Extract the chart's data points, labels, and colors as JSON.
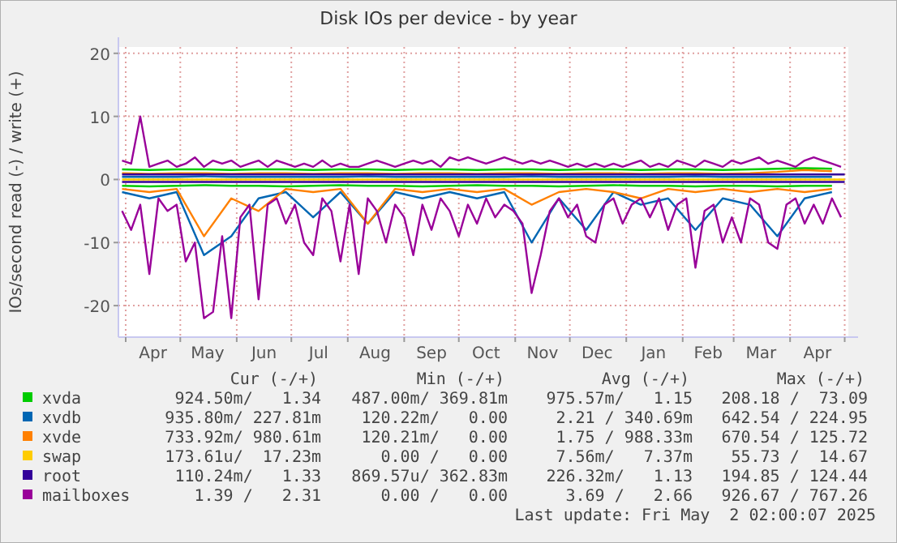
{
  "chart_data": {
    "type": "line",
    "title": "Disk IOs per device - by year",
    "ylabel": "IOs/second read (-) / write (+)",
    "x": [
      "2024-03-30",
      "2024-04-04",
      "2024-04-09",
      "2024-04-14",
      "2024-04-19",
      "2024-04-24",
      "2024-04-29",
      "2024-05-04",
      "2024-05-09",
      "2024-05-14",
      "2024-05-19",
      "2024-05-24",
      "2024-05-29",
      "2024-06-03",
      "2024-06-08",
      "2024-06-13",
      "2024-06-18",
      "2024-06-23",
      "2024-06-28",
      "2024-07-03",
      "2024-07-08",
      "2024-07-13",
      "2024-07-18",
      "2024-07-23",
      "2024-07-28",
      "2024-08-02",
      "2024-08-07",
      "2024-08-12",
      "2024-08-17",
      "2024-08-22",
      "2024-08-27",
      "2024-09-01",
      "2024-09-06",
      "2024-09-11",
      "2024-09-16",
      "2024-09-21",
      "2024-09-26",
      "2024-10-01",
      "2024-10-06",
      "2024-10-11",
      "2024-10-16",
      "2024-10-21",
      "2024-10-26",
      "2024-10-31",
      "2024-11-05",
      "2024-11-10",
      "2024-11-15",
      "2024-11-20",
      "2024-11-25",
      "2024-11-30",
      "2024-12-05",
      "2024-12-10",
      "2024-12-15",
      "2024-12-20",
      "2024-12-25",
      "2024-12-30",
      "2025-01-04",
      "2025-01-09",
      "2025-01-14",
      "2025-01-19",
      "2025-01-24",
      "2025-01-29",
      "2025-02-03",
      "2025-02-08",
      "2025-02-13",
      "2025-02-18",
      "2025-02-23",
      "2025-02-28",
      "2025-03-05",
      "2025-03-10",
      "2025-03-15",
      "2025-03-20",
      "2025-03-25",
      "2025-03-30",
      "2025-04-04",
      "2025-04-09",
      "2025-04-14",
      "2025-04-19",
      "2025-04-24",
      "2025-04-29"
    ],
    "series": [
      {
        "name": "xvda",
        "color": "#00cc00",
        "x": [
          "2024-03-30",
          "2024-04-14",
          "2024-04-29",
          "2024-05-14",
          "2024-05-29",
          "2024-06-13",
          "2024-06-28",
          "2024-07-13",
          "2024-07-28",
          "2024-08-12",
          "2024-08-27",
          "2024-09-11",
          "2024-09-26",
          "2024-10-11",
          "2024-10-26",
          "2024-11-10",
          "2024-11-25",
          "2024-12-10",
          "2024-12-25",
          "2025-01-09",
          "2025-01-24",
          "2025-02-08",
          "2025-02-23",
          "2025-03-10",
          "2025-03-25",
          "2025-04-09",
          "2025-04-24"
        ],
        "values": [
          1.6,
          1.5,
          1.6,
          1.6,
          1.5,
          1.6,
          1.6,
          1.5,
          1.6,
          1.6,
          1.5,
          1.6,
          1.6,
          1.5,
          1.6,
          1.6,
          1.5,
          1.6,
          1.6,
          1.5,
          1.6,
          1.6,
          1.5,
          1.6,
          1.7,
          1.8,
          1.7
        ]
      },
      {
        "color": "#00cc00",
        "x": [
          "2024-03-30",
          "2024-04-14",
          "2024-04-29",
          "2024-05-14",
          "2024-05-29",
          "2024-06-13",
          "2024-06-28",
          "2024-07-13",
          "2024-07-28",
          "2024-08-12",
          "2024-08-27",
          "2024-09-11",
          "2024-09-26",
          "2024-10-11",
          "2024-10-26",
          "2024-11-10",
          "2024-11-25",
          "2024-12-10",
          "2024-12-25",
          "2025-01-09",
          "2025-01-24",
          "2025-02-08",
          "2025-02-23",
          "2025-03-10",
          "2025-03-25",
          "2025-04-09",
          "2025-04-24"
        ],
        "values": [
          -1,
          -1.1,
          -1,
          -0.9,
          -1,
          -1,
          -1.1,
          -1,
          -0.9,
          -1,
          -1,
          -1.1,
          -1,
          -0.9,
          -1,
          -1,
          -1.1,
          -1,
          -0.9,
          -1,
          -1,
          -1.1,
          -1,
          -1,
          -1.1,
          -1,
          -1
        ]
      },
      {
        "name": "xvdb",
        "color": "#0066b3",
        "x": [
          "2024-03-30",
          "2024-04-14",
          "2024-04-29",
          "2024-05-14",
          "2024-05-29",
          "2024-06-13",
          "2024-06-28",
          "2024-07-13",
          "2024-07-28",
          "2024-08-12",
          "2024-08-27",
          "2024-09-11",
          "2024-09-26",
          "2024-10-11",
          "2024-10-26",
          "2024-11-10",
          "2024-11-25",
          "2024-12-10",
          "2024-12-25",
          "2025-01-09",
          "2025-01-24",
          "2025-02-08",
          "2025-02-23",
          "2025-03-10",
          "2025-03-25",
          "2025-04-09",
          "2025-04-24"
        ],
        "values": [
          0.4,
          0.4,
          0.4,
          0.5,
          0.4,
          0.4,
          0.4,
          0.4,
          0.4,
          0.5,
          0.4,
          0.4,
          0.4,
          0.4,
          0.4,
          0.5,
          0.4,
          0.4,
          0.4,
          0.4,
          0.4,
          0.5,
          0.4,
          0.4,
          0.4,
          0.4,
          0.4
        ]
      },
      {
        "color": "#0066b3",
        "x": [
          "2024-03-30",
          "2024-04-14",
          "2024-04-29",
          "2024-05-14",
          "2024-05-29",
          "2024-06-13",
          "2024-06-28",
          "2024-07-13",
          "2024-07-28",
          "2024-08-12",
          "2024-08-27",
          "2024-09-11",
          "2024-09-26",
          "2024-10-11",
          "2024-10-26",
          "2024-11-10",
          "2024-11-25",
          "2024-12-10",
          "2024-12-25",
          "2025-01-09",
          "2025-01-24",
          "2025-02-08",
          "2025-02-23",
          "2025-03-10",
          "2025-03-25",
          "2025-04-09",
          "2025-04-24"
        ],
        "values": [
          -2,
          -3,
          -2,
          -12,
          -9,
          -3,
          -2,
          -6,
          -2,
          -7,
          -2,
          -3,
          -2,
          -3,
          -2,
          -10,
          -3,
          -8,
          -2,
          -4,
          -3,
          -8,
          -3,
          -4,
          -9,
          -3,
          -2
        ]
      },
      {
        "name": "xvde",
        "color": "#ff8000",
        "x": [
          "2024-03-30",
          "2024-04-14",
          "2024-04-29",
          "2024-05-14",
          "2024-05-29",
          "2024-06-13",
          "2024-06-28",
          "2024-07-13",
          "2024-07-28",
          "2024-08-12",
          "2024-08-27",
          "2024-09-11",
          "2024-09-26",
          "2024-10-11",
          "2024-10-26",
          "2024-11-10",
          "2024-11-25",
          "2024-12-10",
          "2024-12-25",
          "2025-01-09",
          "2025-01-24",
          "2025-02-08",
          "2025-02-23",
          "2025-03-10",
          "2025-03-25",
          "2025-04-09",
          "2025-04-24"
        ],
        "values": [
          1,
          0.9,
          1,
          1,
          0.9,
          1,
          1,
          0.9,
          1,
          1,
          0.9,
          1,
          1,
          0.9,
          1,
          1,
          0.9,
          1,
          1,
          0.9,
          1,
          1,
          0.9,
          1,
          1.2,
          1.5,
          1.3
        ]
      },
      {
        "color": "#ff8000",
        "x": [
          "2024-03-30",
          "2024-04-14",
          "2024-04-29",
          "2024-05-14",
          "2024-05-29",
          "2024-06-13",
          "2024-06-28",
          "2024-07-13",
          "2024-07-28",
          "2024-08-12",
          "2024-08-27",
          "2024-09-11",
          "2024-09-26",
          "2024-10-11",
          "2024-10-26",
          "2024-11-10",
          "2024-11-25",
          "2024-12-10",
          "2024-12-25",
          "2025-01-09",
          "2025-01-24",
          "2025-02-08",
          "2025-02-23",
          "2025-03-10",
          "2025-03-25",
          "2025-04-09",
          "2025-04-24"
        ],
        "values": [
          -1.5,
          -2,
          -1.5,
          -9,
          -3,
          -5,
          -1.5,
          -2,
          -1.5,
          -7,
          -1.5,
          -2,
          -1.5,
          -2,
          -1.5,
          -4,
          -2,
          -1.5,
          -2,
          -3,
          -1.5,
          -2,
          -1.5,
          -2,
          -1.5,
          -2,
          -1.5
        ]
      },
      {
        "name": "swap",
        "color": "#ffcc00",
        "x": [
          "2024-03-30",
          "2025-05-01"
        ],
        "values": [
          0,
          0
        ]
      },
      {
        "name": "root",
        "color": "#330099",
        "x": [
          "2024-03-30",
          "2025-05-01"
        ],
        "values": [
          0.8,
          0.8
        ]
      },
      {
        "color": "#330099",
        "x": [
          "2024-03-30",
          "2025-05-01"
        ],
        "values": [
          -0.4,
          -0.4
        ]
      },
      {
        "name": "mailboxes",
        "color": "#990099",
        "values": [
          3,
          2.5,
          10,
          2,
          2.5,
          3,
          2,
          2.5,
          3.5,
          2,
          3,
          2.5,
          3,
          2,
          2.5,
          3,
          2,
          3,
          2.5,
          2,
          2.5,
          2,
          3,
          2,
          2.5,
          2,
          2,
          2.5,
          3,
          2.5,
          2,
          2.5,
          3,
          2.5,
          3,
          2,
          3.5,
          3,
          3.5,
          3,
          2.5,
          3,
          3.5,
          3,
          2.5,
          3,
          2.5,
          3,
          2.5,
          2,
          2.5,
          2,
          2.5,
          2,
          2.5,
          2,
          2.5,
          3,
          2,
          2.5,
          2,
          3,
          2.5,
          2,
          3,
          2.5,
          2,
          3,
          2.5,
          3,
          3.5,
          2.5,
          3,
          2.5,
          2,
          3,
          3.5,
          3,
          2.5,
          2
        ]
      },
      {
        "color": "#990099",
        "values": [
          -5,
          -8,
          -4,
          -15,
          -3,
          -5,
          -4,
          -13,
          -10,
          -22,
          -21,
          -9,
          -22,
          -6,
          -4,
          -19,
          -4,
          -3,
          -7,
          -4,
          -10,
          -12,
          -3,
          -5,
          -13,
          -4,
          -15,
          -3,
          -5,
          -10,
          -4,
          -6,
          -12,
          -4,
          -8,
          -3,
          -5,
          -9,
          -4,
          -7,
          -3,
          -6,
          -4,
          -5,
          -7,
          -18,
          -12,
          -5,
          -3,
          -6,
          -4,
          -9,
          -10,
          -4,
          -3,
          -7,
          -4,
          -3,
          -6,
          -3,
          -8,
          -4,
          -3,
          -14,
          -5,
          -4,
          -10,
          -6,
          -10,
          -3,
          -4,
          -10,
          -11,
          -4,
          -3,
          -7,
          -4,
          -7,
          -3,
          -6
        ]
      }
    ],
    "xlim": [
      "2024-03-28",
      "2025-05-03"
    ],
    "xticks": [
      {
        "value": "2024-04-01",
        "label": null
      },
      {
        "value": "2024-04-16",
        "label": "Apr"
      },
      {
        "value": "2024-05-01",
        "label": null
      },
      {
        "value": "2024-05-16",
        "label": "May"
      },
      {
        "value": "2024-06-01",
        "label": null
      },
      {
        "value": "2024-06-16",
        "label": "Jun"
      },
      {
        "value": "2024-07-01",
        "label": null
      },
      {
        "value": "2024-07-16",
        "label": "Jul"
      },
      {
        "value": "2024-08-01",
        "label": null
      },
      {
        "value": "2024-08-16",
        "label": "Aug"
      },
      {
        "value": "2024-09-01",
        "label": null
      },
      {
        "value": "2024-09-16",
        "label": "Sep"
      },
      {
        "value": "2024-10-01",
        "label": null
      },
      {
        "value": "2024-10-16",
        "label": "Oct"
      },
      {
        "value": "2024-11-01",
        "label": null
      },
      {
        "value": "2024-11-16",
        "label": "Nov"
      },
      {
        "value": "2024-12-01",
        "label": null
      },
      {
        "value": "2024-12-16",
        "label": "Dec"
      },
      {
        "value": "2025-01-01",
        "label": null
      },
      {
        "value": "2025-01-16",
        "label": "Jan"
      },
      {
        "value": "2025-02-01",
        "label": null
      },
      {
        "value": "2025-02-15",
        "label": "Feb"
      },
      {
        "value": "2025-03-01",
        "label": null
      },
      {
        "value": "2025-03-16",
        "label": "Mar"
      },
      {
        "value": "2025-04-01",
        "label": null
      },
      {
        "value": "2025-04-16",
        "label": "Apr"
      },
      {
        "value": "2025-05-01",
        "label": null
      }
    ],
    "ylim": [
      -25,
      21
    ],
    "yticks": [
      -20,
      -10,
      0,
      10,
      20
    ],
    "grid": true,
    "legend": "bottom",
    "annotations": [
      "Cur (-/+)",
      "Min (-/+)",
      "Avg (-/+)",
      "Max (-/+)",
      "924.50m/   1.34",
      "487.00m/ 369.81m",
      "975.57m/   1.15",
      "208.18 /  73.09",
      "935.80m/ 227.81m",
      "120.22m/   0.00",
      "2.21 / 340.69m",
      "642.54 / 224.95",
      "733.92m/ 980.61m",
      "120.21m/   0.00",
      "1.75 / 988.33m",
      "670.54 / 125.72",
      "173.61u/  17.23m",
      "0.00 /   0.00",
      "7.56m/   7.37m",
      "55.73 /  14.67",
      "110.24m/   1.33",
      "869.57u/ 362.83m",
      "226.32m/   1.13",
      "194.85 / 124.44",
      "1.39 /   2.31",
      "0.00 /   0.00",
      "3.69 /   2.66",
      "926.67 / 767.26",
      "Last update: Fri May  2 02:00:07 2025"
    ]
  }
}
